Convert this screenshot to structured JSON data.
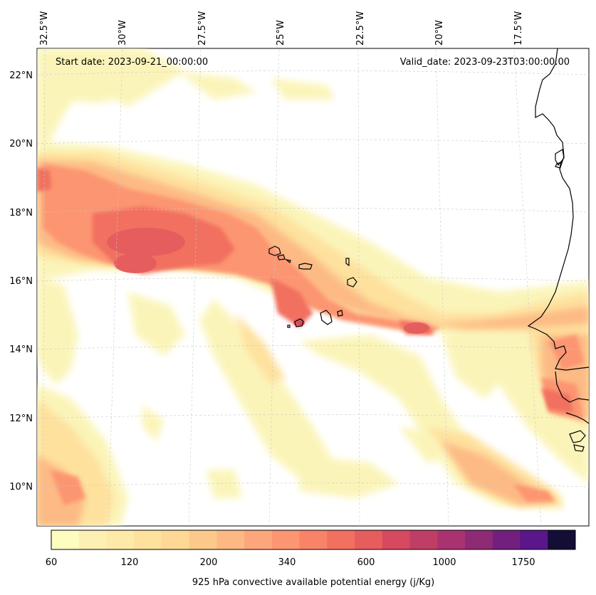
{
  "annotations": {
    "start_date": "Start date: 2023-09-21_00:00:00",
    "valid_date": "Valid_date: 2023-09-23T03:00:00.00"
  },
  "longitude_labels": [
    "32.5°W",
    "30°W",
    "27.5°W",
    "25°W",
    "22.5°W",
    "20°W",
    "17.5°W"
  ],
  "latitude_labels": [
    "22°N",
    "20°N",
    "18°N",
    "16°N",
    "14°N",
    "12°N",
    "10°N"
  ],
  "colorbar": {
    "label": "925 hPa convective available potential energy (j/Kg)",
    "tick_labels": [
      "60",
      "120",
      "200",
      "340",
      "600",
      "1000",
      "1750"
    ],
    "level_colors": [
      "#fcfdbf",
      "#fdf0b4",
      "#feeaa8",
      "#fee19c",
      "#fed894",
      "#fdc98b",
      "#fdb883",
      "#fda67b",
      "#fc9571",
      "#f88368",
      "#f1705f",
      "#e65d5e",
      "#d6495f",
      "#c03e66",
      "#a93370",
      "#8f2a75",
      "#721f80",
      "#591789",
      "#140e36"
    ]
  },
  "features": {
    "plume_main": "CAPE band from 32.5°W to coast",
    "coastline": "West African coast",
    "islands": "Cape Verde islands"
  }
}
